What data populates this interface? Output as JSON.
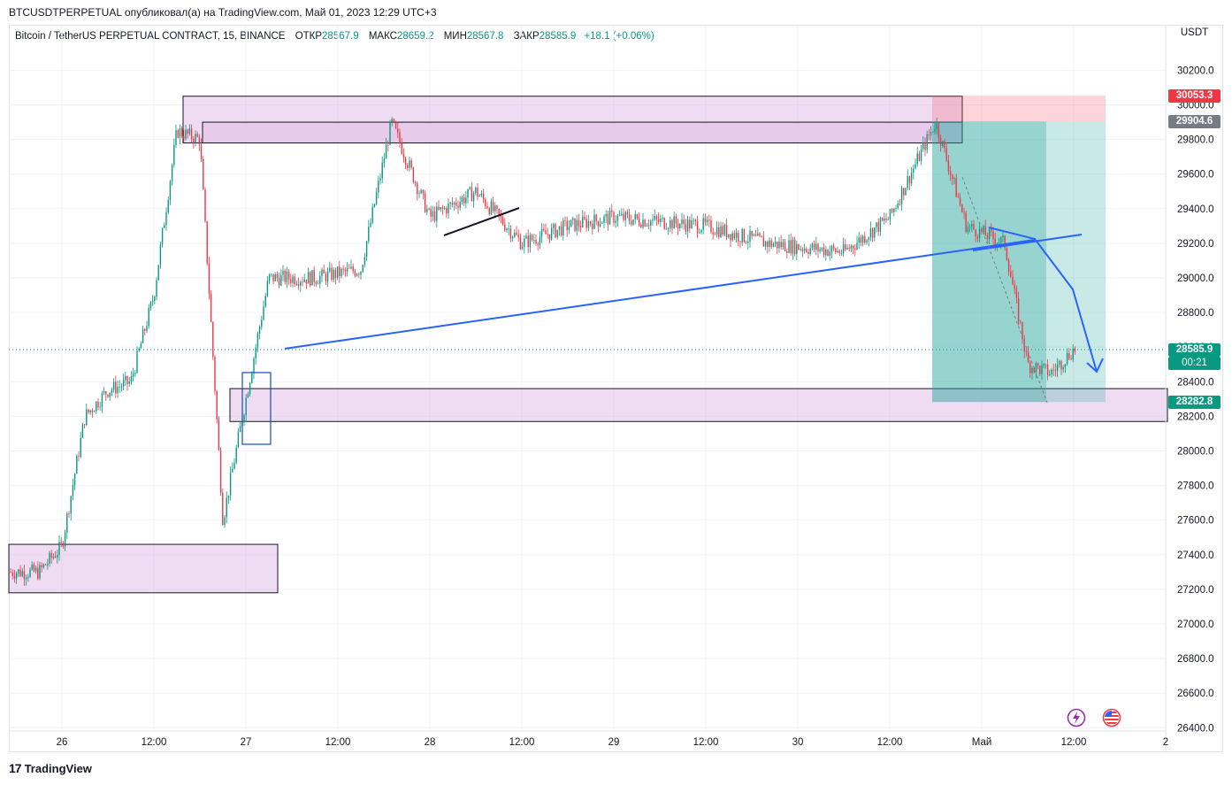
{
  "header": {
    "publish_line": "BTCUSDTPERPETUAL опубликовал(а) на TradingView.com, Май 01, 2023 12:29 UTC+3",
    "symbol_desc": "Bitcoin / TetherUS PERPETUAL CONTRACT, 15, BINANCE",
    "open_label": "ОТКР",
    "open_value": "28567.9",
    "high_label": "МАКС",
    "high_value": "28659.2",
    "low_label": "МИН",
    "low_value": "28567.8",
    "close_label": "ЗАКР",
    "close_value": "28585.9",
    "change": "+18.1 (+0.06%)"
  },
  "axis": {
    "currency": "USDT",
    "y_ticks": [
      "30200.0",
      "30000.0",
      "29800.0",
      "29600.0",
      "29400.0",
      "29200.0",
      "29000.0",
      "28800.0",
      "28600.0",
      "28400.0",
      "28200.0",
      "28000.0",
      "27800.0",
      "27600.0",
      "27400.0",
      "27200.0",
      "27000.0",
      "26800.0",
      "26600.0",
      "26400.0"
    ],
    "x_ticks": [
      "26",
      "12:00",
      "27",
      "12:00",
      "28",
      "12:00",
      "29",
      "12:00",
      "30",
      "12:00",
      "Май",
      "12:00",
      "2"
    ]
  },
  "price_tags": {
    "stop": "30053.3",
    "entry": "29904.6",
    "last": "28585.9",
    "countdown": "00:21",
    "target": "28282.8"
  },
  "footer": {
    "brand": "TradingView"
  },
  "colors": {
    "up": "#089981",
    "down": "#f23645",
    "zone": "#e1bee7",
    "trend": "#2962ff",
    "profit": "#26a69a",
    "loss": "#f7525f"
  },
  "chart_data": {
    "type": "candlestick",
    "title": "Bitcoin / TetherUS PERPETUAL CONTRACT, 15, BINANCE",
    "ylabel": "USDT",
    "ylim": [
      26400,
      30300
    ],
    "x_categories": [
      "26",
      "12:00",
      "27",
      "12:00",
      "28",
      "12:00",
      "29",
      "12:00",
      "30",
      "12:00",
      "Май",
      "12:00",
      "2"
    ],
    "price_path": [
      {
        "t": "25 21:00",
        "p": 27300
      },
      {
        "t": "26 00:00",
        "p": 27450
      },
      {
        "t": "26 03:00",
        "p": 28200
      },
      {
        "t": "26 06:00",
        "p": 28350
      },
      {
        "t": "26 09:00",
        "p": 28400
      },
      {
        "t": "26 12:00",
        "p": 28900
      },
      {
        "t": "26 15:00",
        "p": 29850
      },
      {
        "t": "26 18:00",
        "p": 29800
      },
      {
        "t": "26 21:00",
        "p": 27600
      },
      {
        "t": "27 00:00",
        "p": 28300
      },
      {
        "t": "27 03:00",
        "p": 29000
      },
      {
        "t": "27 09:00",
        "p": 29000
      },
      {
        "t": "27 15:00",
        "p": 29050
      },
      {
        "t": "27 19:00",
        "p": 29900
      },
      {
        "t": "28 00:00",
        "p": 29350
      },
      {
        "t": "28 06:00",
        "p": 29500
      },
      {
        "t": "28 12:00",
        "p": 29200
      },
      {
        "t": "28 18:00",
        "p": 29300
      },
      {
        "t": "29 00:00",
        "p": 29350
      },
      {
        "t": "29 12:00",
        "p": 29300
      },
      {
        "t": "29 20:00",
        "p": 29200
      },
      {
        "t": "30 06:00",
        "p": 29150
      },
      {
        "t": "30 12:00",
        "p": 29350
      },
      {
        "t": "30 18:00",
        "p": 29900
      },
      {
        "t": "30 22:00",
        "p": 29300
      },
      {
        "t": "01 03:00",
        "p": 29200
      },
      {
        "t": "01 06:00",
        "p": 28500
      },
      {
        "t": "01 09:00",
        "p": 28450
      },
      {
        "t": "01 12:00",
        "p": 28586
      }
    ],
    "annotations": {
      "supply_zone": [
        29780,
        30050
      ],
      "demand_zone": [
        28170,
        28360
      ],
      "lower_zone": [
        27180,
        27460
      ],
      "short_position": {
        "entry": 29904.6,
        "stop": 30053.3,
        "target": 28282.8
      },
      "last_price": 28585.9
    }
  }
}
